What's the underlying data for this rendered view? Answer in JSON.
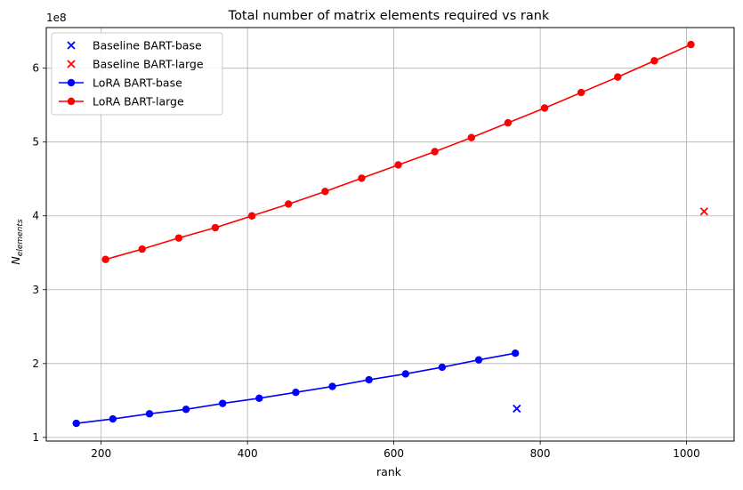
{
  "chart_data": {
    "type": "line",
    "title": "Total number of matrix elements required vs rank",
    "xlabel": "rank",
    "ylabel_base": "N",
    "ylabel_sub": "elements",
    "y_multiplier_label": "1e8",
    "xlim": [
      125,
      1065
    ],
    "ylim": [
      0.95,
      6.55
    ],
    "xticks": [
      200,
      400,
      600,
      800,
      1000
    ],
    "yticks": [
      1,
      2,
      3,
      4,
      5,
      6
    ],
    "grid": true,
    "legend_position": "top-left",
    "series": [
      {
        "name": "Baseline BART-base",
        "kind": "scatter",
        "marker": "x",
        "color": "#0000ff",
        "x": [
          768
        ],
        "y": [
          1.39
        ]
      },
      {
        "name": "Baseline BART-large",
        "kind": "scatter",
        "marker": "x",
        "color": "#ff0000",
        "x": [
          1024
        ],
        "y": [
          4.06
        ]
      },
      {
        "name": "LoRA BART-base",
        "kind": "line",
        "marker": "o",
        "color": "#0000ff",
        "x": [
          166,
          216,
          266,
          316,
          366,
          416,
          466,
          516,
          566,
          616,
          666,
          716,
          766
        ],
        "y": [
          1.19,
          1.25,
          1.32,
          1.38,
          1.46,
          1.53,
          1.61,
          1.69,
          1.78,
          1.86,
          1.95,
          2.05,
          2.14
        ]
      },
      {
        "name": "LoRA BART-large",
        "kind": "line",
        "marker": "o",
        "color": "#ff0000",
        "x": [
          206,
          256,
          306,
          356,
          406,
          456,
          506,
          556,
          606,
          656,
          706,
          756,
          806,
          856,
          906,
          956,
          1006
        ],
        "y": [
          3.41,
          3.55,
          3.7,
          3.84,
          4.0,
          4.16,
          4.33,
          4.51,
          4.69,
          4.87,
          5.06,
          5.26,
          5.46,
          5.67,
          5.88,
          6.1,
          6.32
        ]
      }
    ]
  }
}
